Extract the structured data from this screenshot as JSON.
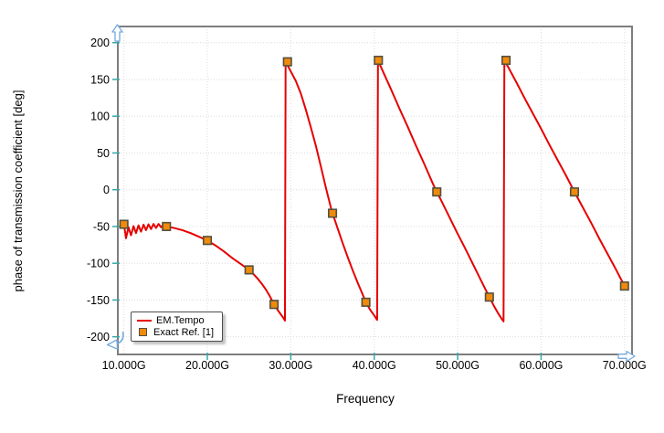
{
  "window": {
    "background": "#ffffff"
  },
  "axes": {
    "y_title": "phase of transmission coefficient [deg]",
    "x_title": "Frequency"
  },
  "legend": {
    "position": "bottom-left-inside",
    "items": [
      {
        "label": "EM.Tempo",
        "swatch": "line",
        "color": "#e60000"
      },
      {
        "label": "Exact Ref. [1]",
        "swatch": "square",
        "color": "#f08a0a"
      }
    ]
  },
  "icons": {
    "axis_arrow_up": "y-axis-direction-arrow",
    "axis_arrow_right": "x-axis-direction-arrow",
    "axis_origin_arrow": "origin-rotate-arrow",
    "arrow_color": "#74a9dd"
  },
  "chart_data": {
    "type": "line",
    "title": "",
    "xlabel": "Frequency",
    "ylabel": "phase of transmission coefficient [deg]",
    "x_unit": "GHz",
    "xlim": [
      9.27,
      70.9
    ],
    "ylim": [
      -224,
      222
    ],
    "grid": "dotted",
    "legend_position": "bottom-left-inside",
    "x_ticks": [
      {
        "value": 10,
        "label": "10.000G"
      },
      {
        "value": 20,
        "label": "20.000G"
      },
      {
        "value": 30,
        "label": "30.000G"
      },
      {
        "value": 40,
        "label": "40.000G"
      },
      {
        "value": 50,
        "label": "50.000G"
      },
      {
        "value": 60,
        "label": "60.000G"
      },
      {
        "value": 70,
        "label": "70.000G"
      }
    ],
    "y_ticks": [
      {
        "value": 200,
        "label": "200"
      },
      {
        "value": 150,
        "label": "150"
      },
      {
        "value": 100,
        "label": "100"
      },
      {
        "value": 50,
        "label": "50"
      },
      {
        "value": 0,
        "label": "0"
      },
      {
        "value": -50,
        "label": "-50"
      },
      {
        "value": -100,
        "label": "-100"
      },
      {
        "value": -150,
        "label": "-150"
      },
      {
        "value": -200,
        "label": "-200"
      }
    ],
    "series": [
      {
        "name": "EM.Tempo",
        "type": "line",
        "color": "#e60000",
        "width": 2,
        "points": [
          [
            10,
            -46
          ],
          [
            10.25,
            -66
          ],
          [
            10.55,
            -51
          ],
          [
            10.85,
            -62
          ],
          [
            11.15,
            -49.5
          ],
          [
            11.45,
            -59
          ],
          [
            11.75,
            -48.5
          ],
          [
            12.05,
            -57
          ],
          [
            12.35,
            -47.5
          ],
          [
            12.65,
            -55
          ],
          [
            12.95,
            -47
          ],
          [
            13.25,
            -53.5
          ],
          [
            13.55,
            -46.5
          ],
          [
            13.85,
            -52
          ],
          [
            14.15,
            -46.5
          ],
          [
            14.45,
            -51
          ],
          [
            14.75,
            -47
          ],
          [
            15.1,
            -50
          ],
          [
            16,
            -52
          ],
          [
            17,
            -55
          ],
          [
            18,
            -59
          ],
          [
            19,
            -64
          ],
          [
            20,
            -69
          ],
          [
            21,
            -76
          ],
          [
            22,
            -84
          ],
          [
            23,
            -93
          ],
          [
            24,
            -101
          ],
          [
            25,
            -109
          ],
          [
            25.5,
            -114.5
          ],
          [
            26,
            -120.5
          ],
          [
            26.5,
            -127.5
          ],
          [
            27,
            -135.5
          ],
          [
            27.5,
            -145
          ],
          [
            28,
            -156
          ],
          [
            28.4,
            -163
          ],
          [
            28.8,
            -169.5
          ],
          [
            29.1,
            -174
          ],
          [
            29.3,
            -178
          ],
          [
            29.38,
            174
          ],
          [
            30,
            161
          ],
          [
            30.6,
            148
          ],
          [
            31.2,
            131
          ],
          [
            31.8,
            109
          ],
          [
            32.4,
            85
          ],
          [
            33,
            60
          ],
          [
            33.6,
            32
          ],
          [
            34.2,
            3
          ],
          [
            34.8,
            -24
          ],
          [
            35,
            -32
          ],
          [
            35.6,
            -52
          ],
          [
            36.2,
            -72
          ],
          [
            36.8,
            -91
          ],
          [
            37.4,
            -109
          ],
          [
            38,
            -126
          ],
          [
            38.6,
            -142
          ],
          [
            39,
            -153
          ],
          [
            39.5,
            -163
          ],
          [
            40,
            -171
          ],
          [
            40.35,
            -177
          ],
          [
            40.45,
            176
          ],
          [
            41,
            162
          ],
          [
            42,
            137
          ],
          [
            43,
            111
          ],
          [
            44,
            86
          ],
          [
            45,
            60
          ],
          [
            46,
            35
          ],
          [
            47,
            9
          ],
          [
            47.5,
            -3
          ],
          [
            48,
            -14
          ],
          [
            49,
            -37
          ],
          [
            50,
            -60
          ],
          [
            51,
            -82
          ],
          [
            52,
            -105
          ],
          [
            53,
            -128
          ],
          [
            53.8,
            -146
          ],
          [
            54.3,
            -157
          ],
          [
            54.9,
            -169
          ],
          [
            55.3,
            -176
          ],
          [
            55.5,
            -179
          ],
          [
            55.6,
            176
          ],
          [
            56,
            168
          ],
          [
            57,
            147
          ],
          [
            58,
            125
          ],
          [
            59,
            104
          ],
          [
            60,
            83
          ],
          [
            61,
            61
          ],
          [
            62,
            40
          ],
          [
            63,
            19
          ],
          [
            64,
            -3
          ],
          [
            65,
            -24
          ],
          [
            66,
            -45
          ],
          [
            67,
            -67
          ],
          [
            68,
            -88
          ],
          [
            69,
            -109
          ],
          [
            70,
            -131
          ]
        ]
      },
      {
        "name": "Exact Ref. [1]",
        "type": "scatter",
        "marker": "square",
        "marker_size": 8.5,
        "color": "#f08a0a",
        "edge_color": "#55503f",
        "points": [
          [
            10,
            -47
          ],
          [
            15.1,
            -50
          ],
          [
            20,
            -69
          ],
          [
            25,
            -109
          ],
          [
            28,
            -156
          ],
          [
            29.6,
            174
          ],
          [
            35,
            -32
          ],
          [
            39,
            -153
          ],
          [
            40.5,
            176
          ],
          [
            47.5,
            -3
          ],
          [
            53.8,
            -146
          ],
          [
            55.8,
            176
          ],
          [
            64,
            -3
          ],
          [
            70,
            -131
          ]
        ]
      }
    ]
  },
  "colors": {
    "plot_border": "#7d7d7d",
    "grid": "#dcdcdc",
    "tick_mark": "#35a8a8",
    "curve": "#e60000",
    "marker_fill": "#f08a0a",
    "marker_edge": "#55503f",
    "arrow": "#74a9dd"
  }
}
